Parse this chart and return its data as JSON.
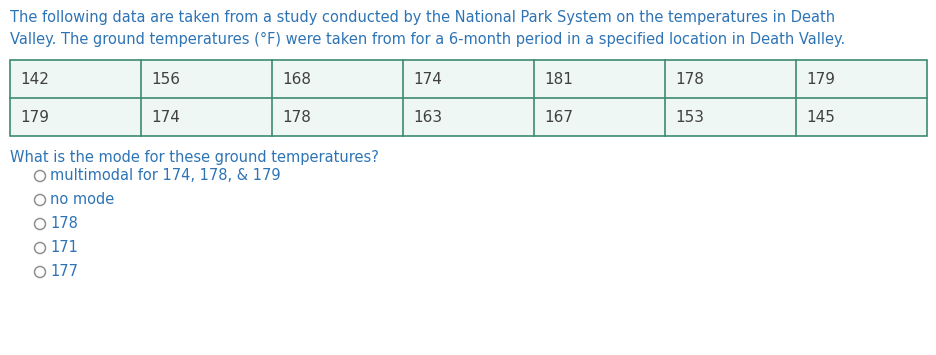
{
  "intro_text_line1": "The following data are taken from a study conducted by the National Park System on the temperatures in Death",
  "intro_text_line2": "Valley. The ground temperatures (°F) were taken from for a 6-month period in a specified location in Death Valley.",
  "table_row1": [
    "142",
    "156",
    "168",
    "174",
    "181",
    "178",
    "179"
  ],
  "table_row2": [
    "179",
    "174",
    "178",
    "163",
    "167",
    "153",
    "145"
  ],
  "question": "What is the mode for these ground temperatures?",
  "options": [
    "multimodal for 174, 178, & 179",
    "no mode",
    "178",
    "171",
    "177"
  ],
  "text_color": "#2E74B5",
  "table_text_color": "#404040",
  "table_bg_color": "#EEF7F4",
  "table_border_color": "#3D8B6E",
  "background_color": "#FFFFFF",
  "font_size_intro": 10.5,
  "font_size_table": 11,
  "font_size_question": 10.5,
  "font_size_options": 10.5,
  "radio_color": "#888888"
}
